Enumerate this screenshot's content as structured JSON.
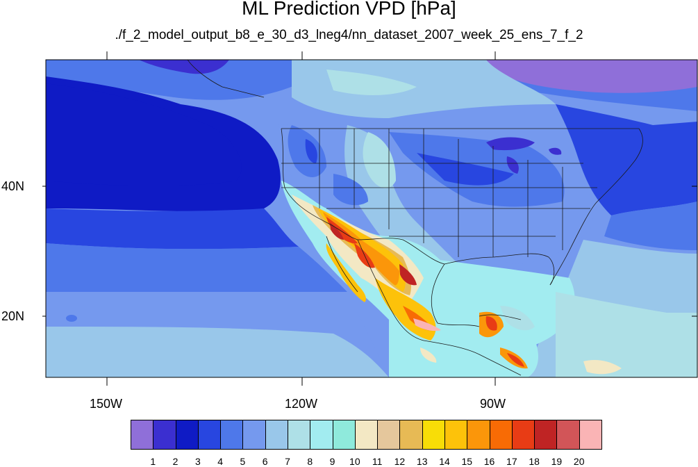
{
  "title": "ML Prediction VPD [hPa]",
  "subtitle": "./f_2_model_output_b8_e_30_d3_lneg4/nn_dataset_2007_week_25_ens_7_f_2",
  "map": {
    "projection": "cylindrical-equidistant",
    "lon_range": [
      -160,
      -60
    ],
    "lat_range": [
      10,
      59
    ],
    "lon_labels": [
      "150W",
      "120W",
      "90W"
    ],
    "lat_labels": [
      "40N",
      "20N"
    ]
  },
  "colorbar": {
    "colors": [
      "#8f6fd9",
      "#3b2fd0",
      "#0f1bc5",
      "#2846e0",
      "#4e78ea",
      "#7599ee",
      "#99c7ea",
      "#aee0e7",
      "#a2ecf0",
      "#8feadc",
      "#f3e8c4",
      "#e5c79c",
      "#e7ba55",
      "#f8dd07",
      "#fdc20a",
      "#fb960a",
      "#f86b05",
      "#e83c15",
      "#bf2424",
      "#d25558",
      "#fab4b5"
    ],
    "labels": [
      "1",
      "2",
      "3",
      "4",
      "5",
      "6",
      "7",
      "8",
      "9",
      "10",
      "11",
      "12",
      "13",
      "14",
      "15",
      "16",
      "17",
      "18",
      "19",
      "20"
    ]
  }
}
